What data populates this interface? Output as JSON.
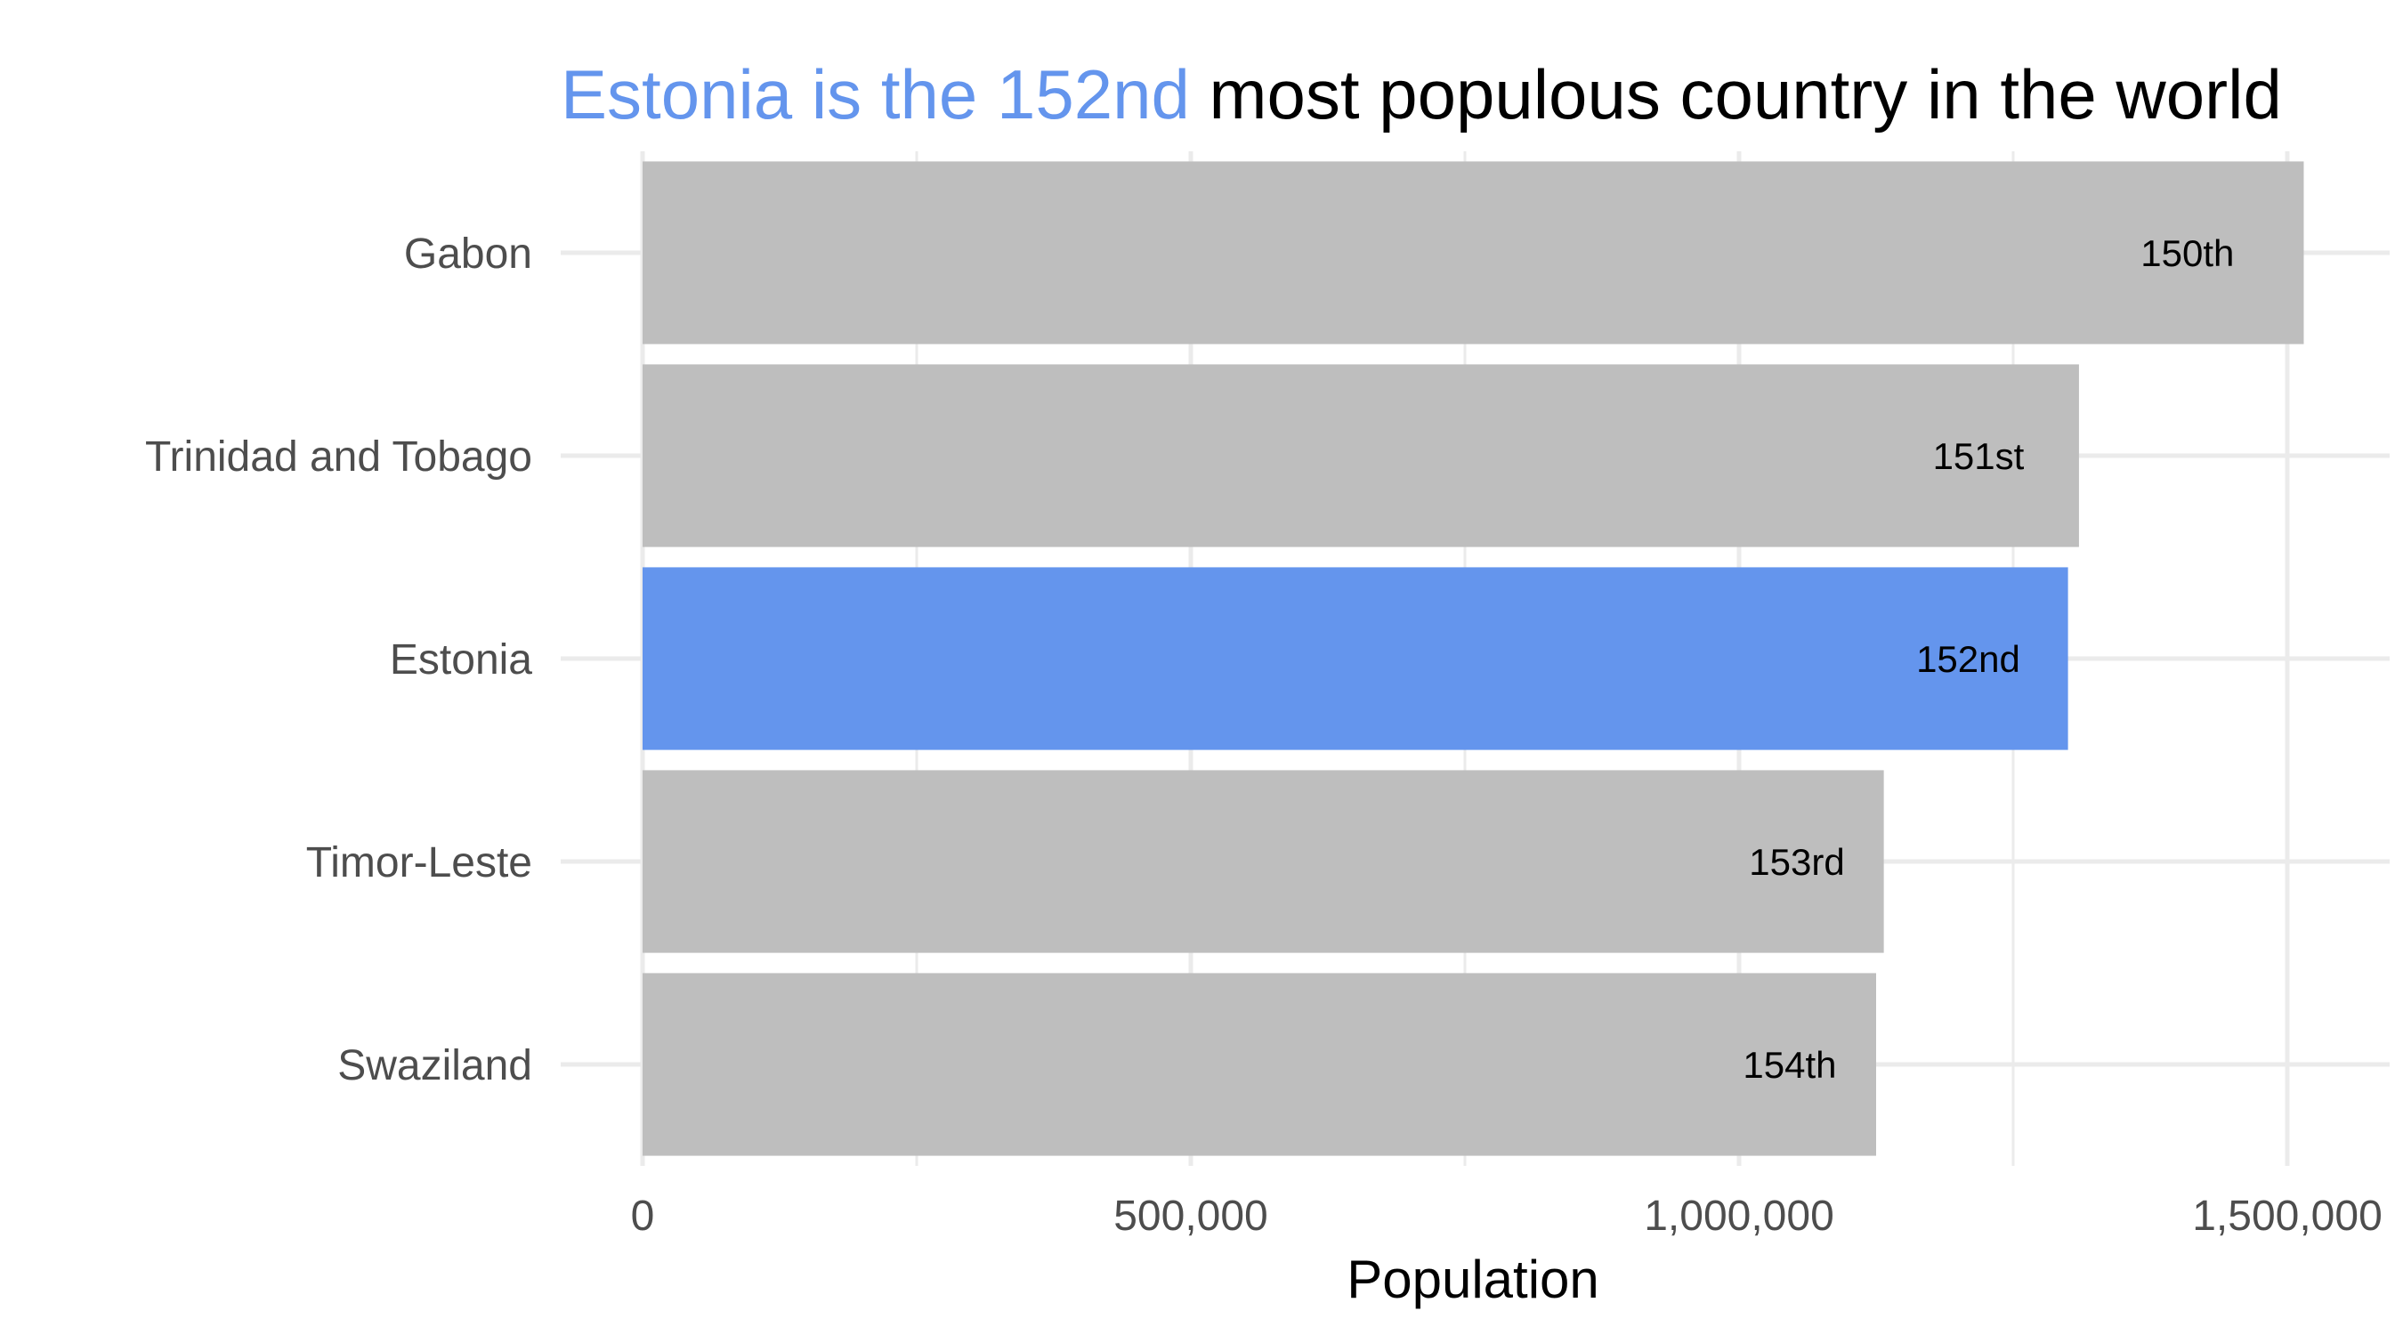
{
  "chart_data": {
    "type": "bar",
    "orientation": "horizontal",
    "title": {
      "highlight": "Estonia is the 152nd",
      "rest": " most populous country in the world"
    },
    "xlabel": "Population",
    "ylabel": "",
    "xlim": [
      0,
      1590000
    ],
    "x_ticks": [
      0,
      500000,
      1000000,
      1500000
    ],
    "x_tick_labels": [
      "0",
      "500,000",
      "1,000,000",
      "1,500,000"
    ],
    "x_minor_ticks": [
      250000,
      750000,
      1250000
    ],
    "categories": [
      "Gabon",
      "Trinidad and Tobago",
      "Estonia",
      "Timor-Leste",
      "Swaziland"
    ],
    "values": [
      1515000,
      1310000,
      1300000,
      1132000,
      1125000
    ],
    "labels": [
      "150th",
      "151st",
      "152nd",
      "153rd",
      "154th"
    ],
    "highlight": "Estonia",
    "colors": {
      "default": "#bebebe",
      "highlight": "#6495ed",
      "title_highlight": "#6495ed",
      "grid": "#ebebeb"
    },
    "grid": true,
    "legend": "none"
  }
}
